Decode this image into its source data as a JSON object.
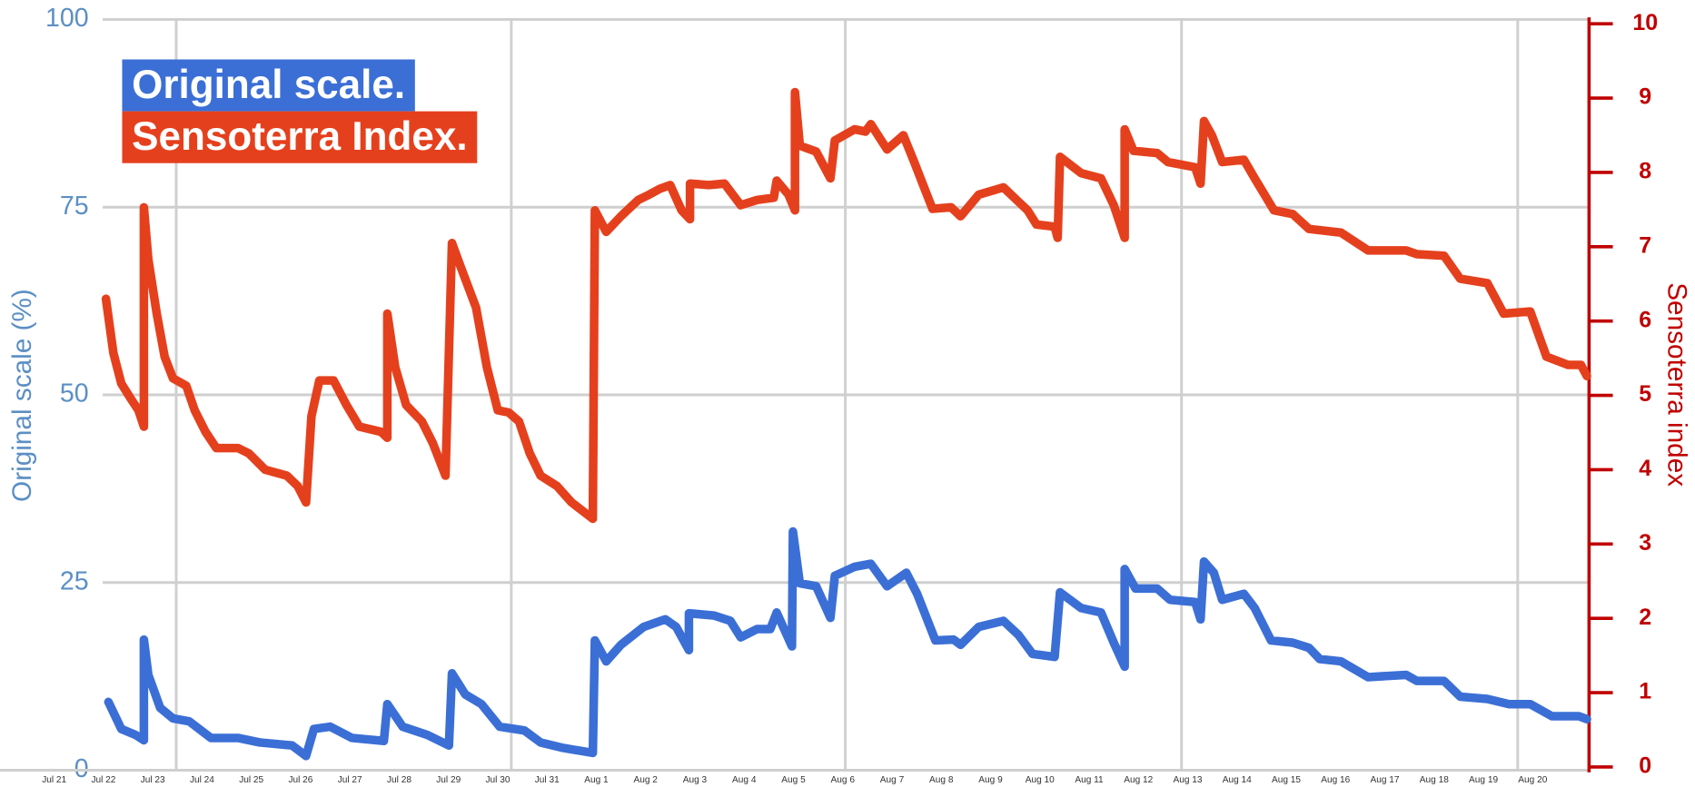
{
  "chart_data": {
    "type": "line",
    "ylabel": "Original scale (%)",
    "y2label": "Sensoterra index",
    "xlim": [
      -1.1,
      31.1
    ],
    "xticks": [
      {
        "value": 0,
        "label": "Jul 21"
      },
      {
        "value": 1,
        "label": "Jul 22"
      },
      {
        "value": 2,
        "label": "Jul 23"
      },
      {
        "value": 3,
        "label": "Jul 24"
      },
      {
        "value": 4,
        "label": "Jul 25"
      },
      {
        "value": 5,
        "label": "Jul 26"
      },
      {
        "value": 6,
        "label": "Jul 27"
      },
      {
        "value": 7,
        "label": "Jul 28"
      },
      {
        "value": 8,
        "label": "Jul 29"
      },
      {
        "value": 9,
        "label": "Jul 30"
      },
      {
        "value": 10,
        "label": "Jul 31"
      },
      {
        "value": 11,
        "label": "Aug 1"
      },
      {
        "value": 12,
        "label": "Aug 2"
      },
      {
        "value": 13,
        "label": "Aug 3"
      },
      {
        "value": 14,
        "label": "Aug 4"
      },
      {
        "value": 15,
        "label": "Aug 5"
      },
      {
        "value": 16,
        "label": "Aug 6"
      },
      {
        "value": 17,
        "label": "Aug 7"
      },
      {
        "value": 18,
        "label": "Aug 8"
      },
      {
        "value": 19,
        "label": "Aug 9"
      },
      {
        "value": 20,
        "label": "Aug 10"
      },
      {
        "value": 21,
        "label": "Aug 11"
      },
      {
        "value": 22,
        "label": "Aug 12"
      },
      {
        "value": 23,
        "label": "Aug 13"
      },
      {
        "value": 24,
        "label": "Aug 14"
      },
      {
        "value": 25,
        "label": "Aug 15"
      },
      {
        "value": 26,
        "label": "Aug 16"
      },
      {
        "value": 27,
        "label": "Aug 17"
      },
      {
        "value": 28,
        "label": "Aug 18"
      },
      {
        "value": 29,
        "label": "Aug 19"
      },
      {
        "value": 30,
        "label": "Aug 20"
      }
    ],
    "ylim": [
      0,
      100
    ],
    "yticks": [
      0,
      25,
      50,
      75,
      100
    ],
    "y2lim": [
      0,
      10
    ],
    "y2ticks": [
      0,
      1,
      2,
      3,
      4,
      5,
      6,
      7,
      8,
      9,
      10
    ],
    "grid": true,
    "series": [
      {
        "name": "Original scale.",
        "color": "#3b6fd6",
        "x": [
          1.1,
          1.36,
          1.65,
          1.82,
          1.82,
          1.91,
          2.15,
          2.41,
          2.74,
          3.18,
          3.73,
          4.17,
          4.83,
          5.11,
          5.27,
          5.6,
          6.04,
          6.69,
          6.76,
          7.07,
          7.57,
          8.01,
          8.07,
          8.34,
          8.67,
          9.04,
          9.54,
          9.87,
          10.3,
          10.93,
          10.97,
          11.2,
          11.5,
          11.96,
          12.4,
          12.62,
          12.88,
          12.88,
          13.39,
          13.72,
          13.93,
          14.26,
          14.53,
          14.66,
          14.97,
          14.99,
          15.13,
          15.46,
          15.75,
          15.84,
          16.24,
          16.57,
          16.9,
          17.29,
          17.51,
          17.88,
          18.25,
          18.39,
          18.76,
          19.26,
          19.57,
          19.85,
          20.3,
          20.41,
          20.84,
          21.24,
          21.5,
          21.72,
          21.72,
          21.94,
          22.38,
          22.64,
          23.15,
          23.26,
          23.33,
          23.53,
          23.7,
          24.14,
          24.36,
          24.69,
          25.13,
          25.46,
          25.68,
          26.11,
          26.66,
          27.43,
          27.65,
          28.2,
          28.53,
          29.08,
          29.52,
          29.95,
          30.39,
          30.94,
          31.1
        ],
        "values": [
          9.1,
          5.5,
          4.7,
          4.0,
          17.4,
          12.7,
          8.3,
          6.9,
          6.5,
          4.3,
          4.3,
          3.7,
          3.3,
          1.9,
          5.5,
          5.8,
          4.3,
          3.9,
          8.8,
          5.8,
          4.7,
          3.3,
          12.9,
          10.1,
          8.8,
          5.8,
          5.3,
          3.7,
          3.0,
          2.3,
          17.3,
          14.5,
          16.7,
          19.1,
          20.1,
          19.1,
          16.0,
          20.9,
          20.6,
          19.9,
          17.7,
          18.8,
          18.8,
          21.0,
          16.5,
          31.8,
          24.9,
          24.5,
          20.3,
          25.9,
          27.1,
          27.5,
          24.5,
          26.3,
          23.5,
          17.3,
          17.4,
          16.7,
          19.1,
          19.9,
          18.0,
          15.5,
          15.1,
          23.7,
          21.6,
          21.0,
          17.0,
          13.8,
          26.8,
          24.2,
          24.2,
          22.7,
          22.4,
          20.1,
          27.8,
          26.3,
          22.7,
          23.5,
          21.6,
          17.3,
          17.0,
          16.3,
          14.8,
          14.5,
          12.4,
          12.7,
          11.9,
          11.9,
          9.8,
          9.5,
          8.8,
          8.8,
          7.2,
          7.2,
          6.8
        ]
      },
      {
        "name": "Sensoterra Index.",
        "color": "#e5401d",
        "axis": "y2",
        "x": [
          1.05,
          1.2,
          1.36,
          1.54,
          1.71,
          1.82,
          1.82,
          1.91,
          2.08,
          2.24,
          2.41,
          2.68,
          2.85,
          3.07,
          3.29,
          3.73,
          3.95,
          4.28,
          4.72,
          4.94,
          5.11,
          5.22,
          5.38,
          5.67,
          5.93,
          6.19,
          6.63,
          6.76,
          6.76,
          6.92,
          7.14,
          7.46,
          7.68,
          7.94,
          8.07,
          8.23,
          8.56,
          8.78,
          9.0,
          9.22,
          9.43,
          9.65,
          9.87,
          10.2,
          10.5,
          10.93,
          10.97,
          11.2,
          11.5,
          11.85,
          12.07,
          12.29,
          12.5,
          12.73,
          12.9,
          12.9,
          13.28,
          13.6,
          13.93,
          14.26,
          14.6,
          14.66,
          14.9,
          15.03,
          15.03,
          15.13,
          15.46,
          15.75,
          15.84,
          16.24,
          16.46,
          16.57,
          16.9,
          17.23,
          17.45,
          17.82,
          18.2,
          18.39,
          18.76,
          19.26,
          19.53,
          19.75,
          19.93,
          20.3,
          20.36,
          20.41,
          20.84,
          21.24,
          21.5,
          21.72,
          21.72,
          21.9,
          22.38,
          22.6,
          23.15,
          23.26,
          23.33,
          23.49,
          23.7,
          24.14,
          24.36,
          24.75,
          25.13,
          25.46,
          26.11,
          26.66,
          27.43,
          27.65,
          28.2,
          28.53,
          29.08,
          29.41,
          29.95,
          30.28,
          30.72,
          30.98,
          31.1
        ],
        "values": [
          6.3,
          5.57,
          5.16,
          4.97,
          4.8,
          4.58,
          7.53,
          6.83,
          6.1,
          5.52,
          5.23,
          5.13,
          4.8,
          4.51,
          4.29,
          4.29,
          4.22,
          4.0,
          3.92,
          3.78,
          3.56,
          4.72,
          5.2,
          5.2,
          4.87,
          4.58,
          4.51,
          4.43,
          6.1,
          5.38,
          4.87,
          4.65,
          4.36,
          3.92,
          7.05,
          6.76,
          6.18,
          5.38,
          4.8,
          4.77,
          4.65,
          4.22,
          3.92,
          3.78,
          3.56,
          3.34,
          7.49,
          7.2,
          7.41,
          7.63,
          7.7,
          7.78,
          7.83,
          7.49,
          7.37,
          7.85,
          7.83,
          7.85,
          7.56,
          7.63,
          7.66,
          7.89,
          7.7,
          7.49,
          9.08,
          8.36,
          8.28,
          7.92,
          8.43,
          8.58,
          8.55,
          8.65,
          8.31,
          8.5,
          8.14,
          7.51,
          7.53,
          7.41,
          7.7,
          7.8,
          7.63,
          7.49,
          7.3,
          7.27,
          7.12,
          8.21,
          7.99,
          7.92,
          7.56,
          7.12,
          8.58,
          8.29,
          8.26,
          8.14,
          8.07,
          7.85,
          8.69,
          8.5,
          8.14,
          8.17,
          7.92,
          7.49,
          7.44,
          7.24,
          7.19,
          6.95,
          6.95,
          6.9,
          6.88,
          6.57,
          6.51,
          6.1,
          6.13,
          5.52,
          5.41,
          5.41,
          5.26
        ]
      }
    ]
  }
}
